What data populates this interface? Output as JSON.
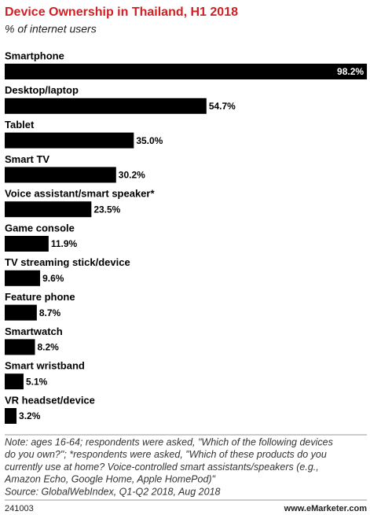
{
  "chart_data": {
    "type": "bar",
    "orientation": "horizontal",
    "title": "Device Ownership in Thailand, H1 2018",
    "subtitle": "% of internet users",
    "categories": [
      "Smartphone",
      "Desktop/laptop",
      "Tablet",
      "Smart TV",
      "Voice assistant/smart speaker*",
      "Game console",
      "TV streaming stick/device",
      "Feature phone",
      "Smartwatch",
      "Smart wristband",
      "VR headset/device"
    ],
    "values": [
      98.2,
      54.7,
      35.0,
      30.2,
      23.5,
      11.9,
      9.6,
      8.7,
      8.2,
      5.1,
      3.2
    ],
    "value_labels": [
      "98.2%",
      "54.7%",
      "35.0%",
      "30.2%",
      "23.5%",
      "11.9%",
      "9.6%",
      "8.7%",
      "8.2%",
      "5.1%",
      "3.2%"
    ],
    "color": "#000000",
    "note": [
      "Note: ages 16-64; respondents were asked, \"Which of the following devices",
      "do you own?\"; *respondents were asked, \"Which of these products do you",
      "currently use at home? Voice-controlled smart assistants/speakers (e.g.,",
      "Amazon Echo, Google Home, Apple HomePod)\""
    ],
    "source": "Source: GlobalWebIndex, Q1-Q2 2018, Aug 2018",
    "chart_id": "241003",
    "publisher": "www.eMarketer.com"
  }
}
